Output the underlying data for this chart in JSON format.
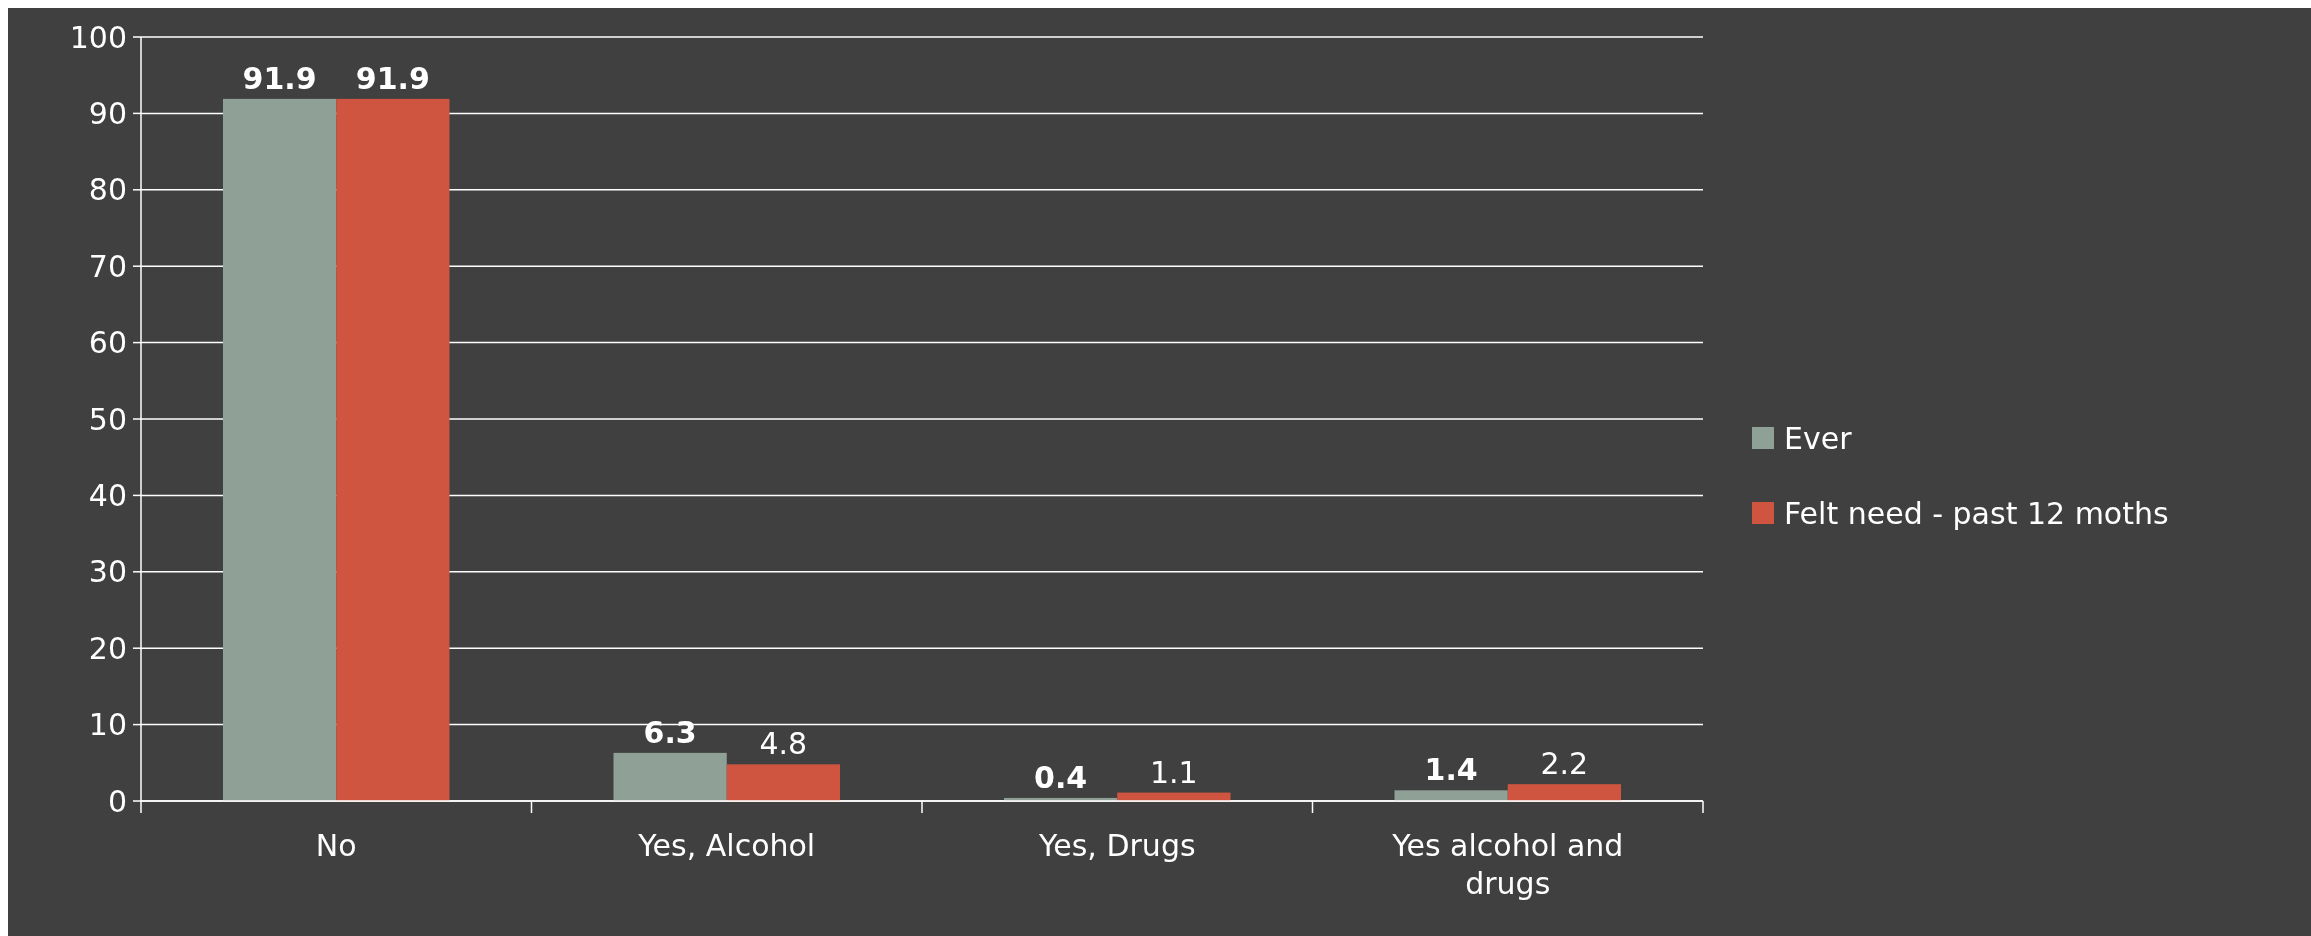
{
  "chart_data": {
    "type": "bar",
    "categories": [
      "No",
      "Yes, Alcohol",
      "Yes, Drugs",
      "Yes alcohol and drugs"
    ],
    "series": [
      {
        "name": "Ever",
        "color": "#8fa096",
        "values": [
          91.9,
          6.3,
          0.4,
          1.4
        ]
      },
      {
        "name": "Felt need - past 12 moths",
        "color": "#cf5540",
        "values": [
          91.9,
          4.8,
          1.1,
          2.2
        ]
      }
    ],
    "ylim": [
      0,
      100
    ],
    "yticks": [
      0,
      10,
      20,
      30,
      40,
      50,
      60,
      70,
      80,
      90,
      100
    ],
    "grid": "y",
    "legend": "right",
    "data_labels": true
  }
}
